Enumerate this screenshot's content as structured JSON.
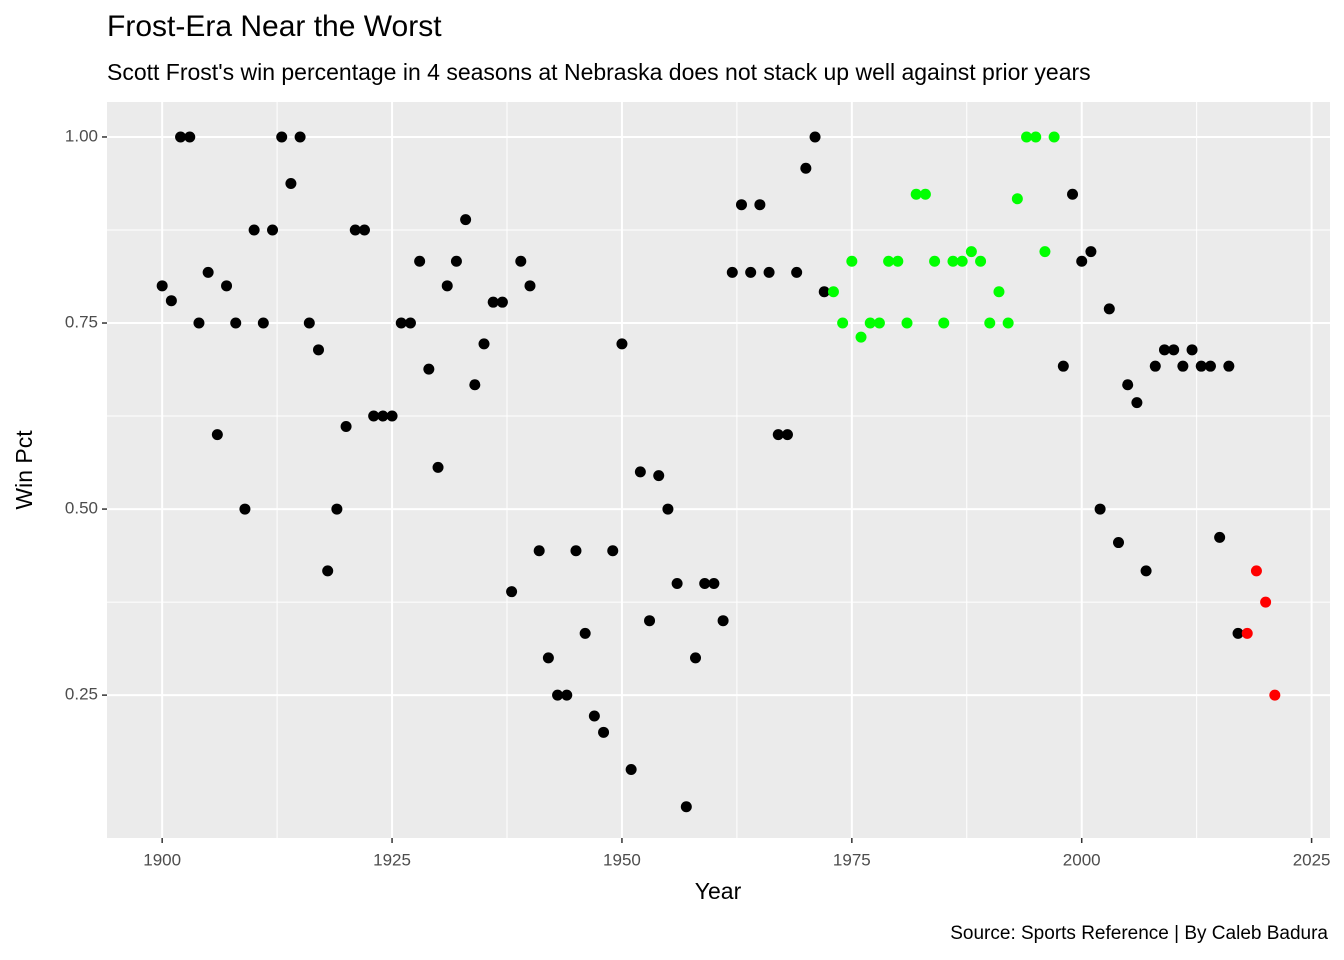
{
  "chart_data": {
    "type": "scatter",
    "title": "Frost-Era Near the Worst",
    "subtitle": "Scott Frost's win percentage in 4 seasons at Nebraska does not stack up well against prior years",
    "x_label": "Year",
    "y_label": "Win Pct",
    "caption": "Source: Sports Reference | By Caleb Badura",
    "xlim": [
      1894,
      2027
    ],
    "ylim": [
      0.058,
      1.047
    ],
    "xticks": [
      1900,
      1925,
      1950,
      1975,
      2000,
      2025
    ],
    "yticks": [
      0.25,
      {
        "value": 0.5,
        "label": "0.50"
      },
      0.75,
      {
        "value": 1,
        "label": "1.00"
      }
    ],
    "grid": true,
    "series": [
      {
        "color": "#000000",
        "x": [
          1900,
          1901,
          1902,
          1903,
          1904,
          1905,
          1906,
          1907,
          1908,
          1909,
          1910,
          1911,
          1912,
          1913,
          1914,
          1915,
          1916,
          1917,
          1918,
          1919,
          1920,
          1921,
          1922,
          1923,
          1924,
          1925,
          1926,
          1927,
          1928,
          1929,
          1930,
          1931,
          1932,
          1933,
          1934,
          1935,
          1936,
          1937,
          1938,
          1939,
          1940,
          1941,
          1942,
          1943,
          1944,
          1945,
          1946,
          1947,
          1948,
          1949,
          1950,
          1951,
          1952,
          1953,
          1954,
          1955,
          1956,
          1957,
          1958,
          1959,
          1960,
          1961,
          1962,
          1963,
          1964,
          1965,
          1966,
          1967,
          1968,
          1969,
          1970,
          1971,
          1972,
          1998,
          1999,
          2000,
          2001,
          2002,
          2003,
          2004,
          2005,
          2006,
          2007,
          2008,
          2009,
          2010,
          2011,
          2012,
          2013,
          2014,
          2015,
          2016,
          2017
        ],
        "values": [
          0.8,
          0.78,
          1,
          1,
          0.75,
          0.818,
          0.6,
          0.8,
          0.75,
          0.5,
          0.875,
          0.75,
          0.875,
          1,
          0.9375,
          1,
          0.75,
          0.714,
          0.417,
          0.5,
          0.611,
          0.875,
          0.875,
          0.625,
          0.625,
          0.625,
          0.75,
          0.75,
          0.833,
          0.688,
          0.556,
          0.8,
          0.833,
          0.889,
          0.667,
          0.722,
          0.778,
          0.778,
          0.389,
          0.833,
          0.8,
          0.444,
          0.3,
          0.25,
          0.25,
          0.444,
          0.333,
          0.222,
          0.2,
          0.444,
          0.722,
          0.15,
          0.55,
          0.35,
          0.545,
          0.5,
          0.4,
          0.1,
          0.3,
          0.4,
          0.4,
          0.35,
          0.818,
          0.909,
          0.818,
          0.909,
          0.818,
          0.6,
          0.6,
          0.818,
          0.958,
          1,
          0.792,
          0.692,
          0.923,
          0.833,
          0.846,
          0.5,
          0.769,
          0.455,
          0.667,
          0.643,
          0.417,
          0.692,
          0.714,
          0.714,
          0.692,
          0.714,
          0.692,
          0.692,
          0.462,
          0.692,
          0.333
        ]
      },
      {
        "color": "#00ff00",
        "x": [
          1973,
          1974,
          1975,
          1976,
          1977,
          1978,
          1979,
          1980,
          1981,
          1982,
          1983,
          1984,
          1985,
          1986,
          1987,
          1988,
          1989,
          1990,
          1991,
          1992,
          1993,
          1994,
          1995,
          1996,
          1997
        ],
        "values": [
          0.792,
          0.75,
          0.833,
          0.731,
          0.75,
          0.75,
          0.833,
          0.833,
          0.75,
          0.923,
          0.923,
          0.833,
          0.75,
          0.833,
          0.833,
          0.846,
          0.833,
          0.75,
          0.792,
          0.75,
          0.917,
          1,
          1,
          0.846,
          1
        ]
      },
      {
        "color": "#ff0000",
        "x": [
          2018,
          2019,
          2020,
          2021
        ],
        "values": [
          0.333,
          0.417,
          0.375,
          0.25
        ]
      }
    ]
  }
}
